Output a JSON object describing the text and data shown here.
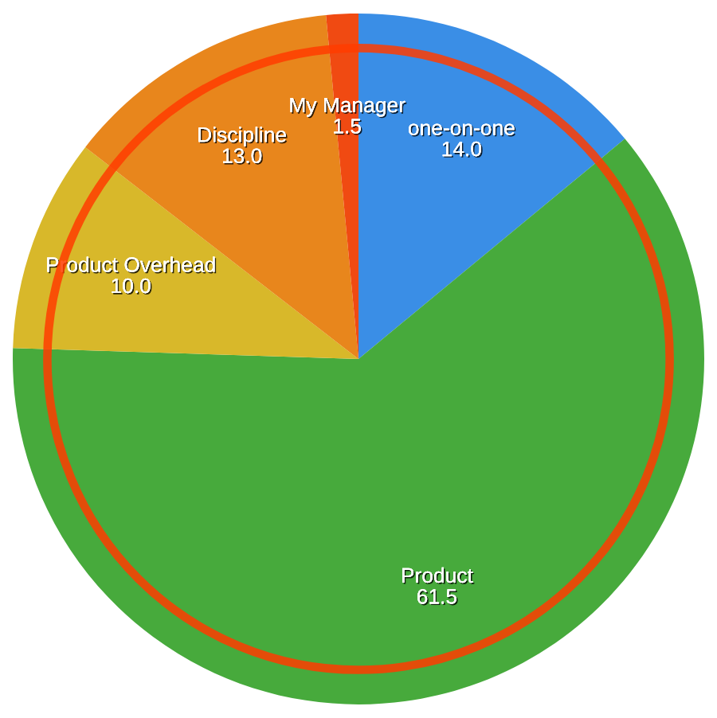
{
  "chart_data": {
    "type": "pie",
    "categories": [
      "one-on-one",
      "Product",
      "Product Overhead",
      "Discipline",
      "My Manager"
    ],
    "values": [
      14.0,
      61.5,
      10.0,
      13.0,
      1.5
    ],
    "value_labels": [
      "14.0",
      "61.5",
      "10.0",
      "13.0",
      "1.5"
    ],
    "colors": [
      "#3a8ee6",
      "#47aa3c",
      "#d8b82a",
      "#e8861c",
      "#f04a12"
    ]
  }
}
